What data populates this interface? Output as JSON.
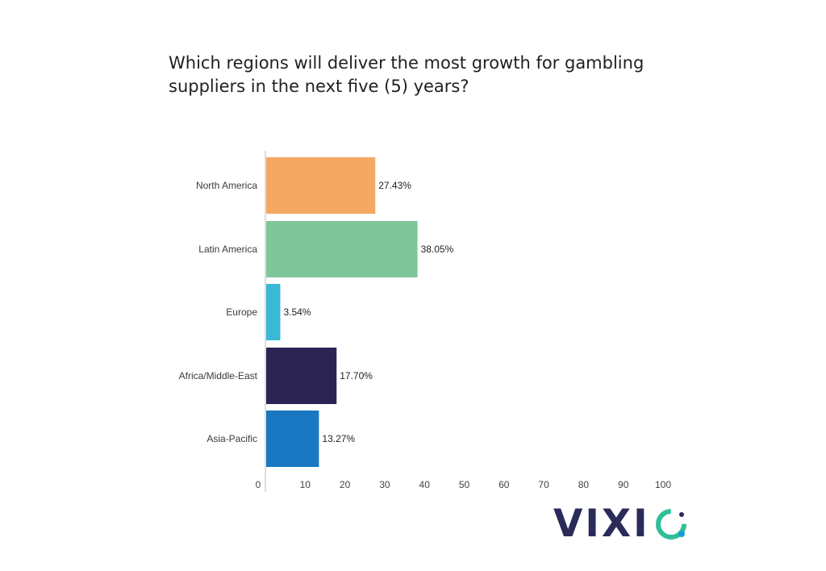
{
  "chart_data": {
    "type": "bar",
    "orientation": "horizontal",
    "title_lines": [
      "Which regions will deliver the most growth for gambling",
      "suppliers in the next five (5) years?"
    ],
    "categories": [
      "North America",
      "Latin America",
      "Europe",
      "Africa/Middle-East",
      "Asia-Pacific"
    ],
    "values": [
      27.43,
      38.05,
      3.54,
      17.7,
      13.27
    ],
    "value_labels": [
      "27.43%",
      "38.05%",
      "3.54%",
      "17.70%",
      "13.27%"
    ],
    "colors": [
      "#f4a862",
      "#7fc79b",
      "#3bb8d6",
      "#2b2452",
      "#1a78c2"
    ],
    "xlim": [
      0,
      100
    ],
    "x_ticks": [
      "0",
      "10",
      "20",
      "30",
      "40",
      "50",
      "60",
      "70",
      "80",
      "90",
      "100"
    ],
    "grid": false
  },
  "brand": {
    "logo_text": "VIXI",
    "logo_colors": [
      "#2b2b5a",
      "#2fbf9b",
      "#1a9fd6"
    ]
  }
}
